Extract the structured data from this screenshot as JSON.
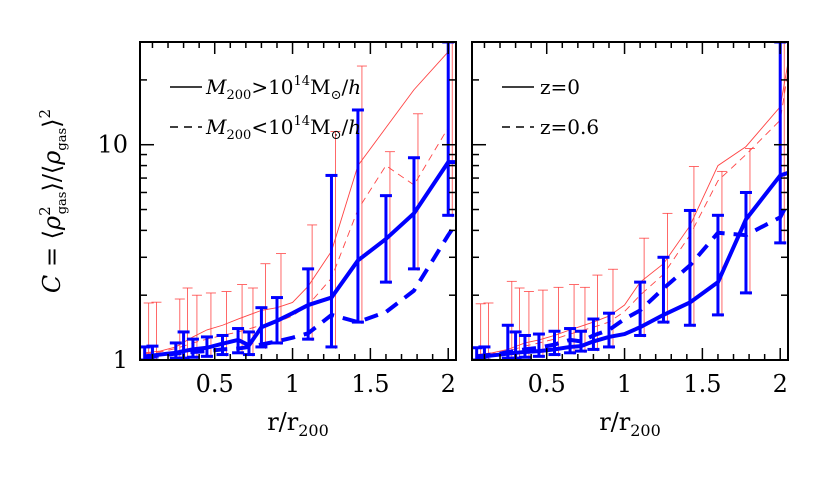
{
  "chart_data": [
    {
      "type": "line",
      "panel": "left",
      "xlabel": "r/r200",
      "ylabel": "C = <ρ²gas>/<ρgas>²",
      "xlim": [
        0.02,
        2.05
      ],
      "ylim": [
        1,
        30
      ],
      "yscale": "log",
      "xticks": [
        "0.5",
        "1",
        "1.5",
        "2"
      ],
      "yticks": [
        "1",
        "10"
      ],
      "legend_position": "top-left",
      "legend": [
        {
          "label": "M200>10^14 M⊙/h",
          "style": "solid"
        },
        {
          "label": "M200<10^14 M⊙/h",
          "style": "dashed"
        }
      ],
      "series": [
        {
          "name": "M200>10^14 M⊙/h",
          "style": "solid",
          "color": "#0000ff",
          "x": [
            0.05,
            0.1,
            0.15,
            0.2,
            0.25,
            0.3,
            0.36,
            0.45,
            0.55,
            0.65,
            0.72,
            0.8,
            0.9,
            1.0,
            1.1,
            1.25,
            1.42,
            1.6,
            1.78,
            2.0,
            2.05
          ],
          "y": [
            1.04,
            1.05,
            1.06,
            1.07,
            1.08,
            1.1,
            1.12,
            1.14,
            1.19,
            1.24,
            1.17,
            1.42,
            1.52,
            1.65,
            1.8,
            1.95,
            2.9,
            3.65,
            4.8,
            8.3,
            8.3
          ]
        },
        {
          "name": "M200<10^14 M⊙/h",
          "style": "dashed",
          "color": "#0000ff",
          "x": [
            0.05,
            0.1,
            0.15,
            0.2,
            0.25,
            0.3,
            0.36,
            0.45,
            0.55,
            0.65,
            0.72,
            0.8,
            0.9,
            1.0,
            1.1,
            1.25,
            1.42,
            1.6,
            1.78,
            2.0,
            2.05
          ],
          "y": [
            1.03,
            1.04,
            1.05,
            1.06,
            1.07,
            1.08,
            1.09,
            1.1,
            1.12,
            1.13,
            1.15,
            1.18,
            1.22,
            1.27,
            1.33,
            1.62,
            1.5,
            1.67,
            2.1,
            3.8,
            4.3
          ]
        },
        {
          "name": "",
          "style": "thin",
          "color": "#ff4444",
          "x": [
            0.05,
            0.15,
            0.25,
            0.36,
            0.45,
            0.55,
            0.65,
            0.8,
            0.9,
            1.0,
            1.1,
            1.25,
            1.42,
            1.6,
            1.78,
            2.0
          ],
          "y": [
            1.08,
            1.1,
            1.15,
            1.28,
            1.38,
            1.45,
            1.55,
            1.7,
            1.75,
            1.85,
            2.2,
            3.2,
            8.0,
            12.0,
            18.0,
            27.0
          ]
        },
        {
          "name": "",
          "style": "thin-dashed",
          "color": "#ff4444",
          "x": [
            0.05,
            0.15,
            0.25,
            0.36,
            0.45,
            0.55,
            0.65,
            0.8,
            0.9,
            1.0,
            1.1,
            1.25,
            1.42,
            1.6,
            1.78,
            2.0
          ],
          "y": [
            1.07,
            1.09,
            1.13,
            1.2,
            1.25,
            1.3,
            1.35,
            1.45,
            1.5,
            1.6,
            1.8,
            2.4,
            5.0,
            8.0,
            6.5,
            12.0
          ]
        }
      ],
      "error_bars": [
        {
          "x": 0.05,
          "lo": 1.0,
          "hi": 1.15
        },
        {
          "x": 0.1,
          "lo": 1.0,
          "hi": 1.16
        },
        {
          "x": 0.25,
          "lo": 1.02,
          "hi": 1.2
        },
        {
          "x": 0.3,
          "lo": 1.02,
          "hi": 1.35
        },
        {
          "x": 0.36,
          "lo": 1.03,
          "hi": 1.25
        },
        {
          "x": 0.45,
          "lo": 1.04,
          "hi": 1.28
        },
        {
          "x": 0.55,
          "lo": 1.06,
          "hi": 1.3
        },
        {
          "x": 0.65,
          "lo": 1.08,
          "hi": 1.4
        },
        {
          "x": 0.72,
          "lo": 1.06,
          "hi": 1.35
        },
        {
          "x": 0.8,
          "lo": 1.15,
          "hi": 1.75
        },
        {
          "x": 0.9,
          "lo": 1.2,
          "hi": 1.95
        },
        {
          "x": 1.1,
          "lo": 1.25,
          "hi": 2.65
        },
        {
          "x": 1.25,
          "lo": 1.15,
          "hi": 7.2
        },
        {
          "x": 1.42,
          "lo": 1.5,
          "hi": 14.5
        },
        {
          "x": 1.6,
          "lo": 2.3,
          "hi": 5.8
        },
        {
          "x": 1.78,
          "lo": 2.65,
          "hi": 8.7
        },
        {
          "x": 2.0,
          "lo": 4.7,
          "hi": 30.0
        }
      ]
    },
    {
      "type": "line",
      "panel": "right",
      "xlabel": "r/r200",
      "xlim": [
        0.02,
        2.05
      ],
      "ylim": [
        1,
        30
      ],
      "yscale": "log",
      "xticks": [
        "0.5",
        "1",
        "1.5",
        "2"
      ],
      "legend_position": "top-left",
      "legend": [
        {
          "label": "z=0",
          "style": "solid"
        },
        {
          "label": "z=0.6",
          "style": "dashed"
        }
      ],
      "series": [
        {
          "name": "z=0",
          "style": "solid",
          "color": "#0000ff",
          "x": [
            0.05,
            0.1,
            0.15,
            0.2,
            0.25,
            0.3,
            0.36,
            0.45,
            0.55,
            0.65,
            0.72,
            0.8,
            0.9,
            1.0,
            1.1,
            1.25,
            1.42,
            1.6,
            1.78,
            2.0,
            2.05
          ],
          "y": [
            1.03,
            1.04,
            1.05,
            1.06,
            1.07,
            1.08,
            1.09,
            1.1,
            1.12,
            1.15,
            1.16,
            1.22,
            1.28,
            1.32,
            1.42,
            1.62,
            1.85,
            2.3,
            4.5,
            7.2,
            7.4
          ]
        },
        {
          "name": "z=0.6",
          "style": "dashed",
          "color": "#0000ff",
          "x": [
            0.05,
            0.1,
            0.15,
            0.2,
            0.25,
            0.3,
            0.36,
            0.45,
            0.55,
            0.65,
            0.72,
            0.8,
            0.9,
            1.0,
            1.1,
            1.25,
            1.42,
            1.6,
            1.78,
            2.0,
            2.05
          ],
          "y": [
            1.04,
            1.05,
            1.06,
            1.07,
            1.09,
            1.1,
            1.12,
            1.14,
            1.18,
            1.24,
            1.22,
            1.3,
            1.38,
            1.55,
            1.7,
            2.15,
            2.75,
            3.9,
            3.8,
            4.6,
            5.4
          ]
        },
        {
          "name": "",
          "style": "thin",
          "color": "#ff4444",
          "x": [
            0.05,
            0.15,
            0.25,
            0.36,
            0.45,
            0.55,
            0.65,
            0.8,
            0.9,
            1.0,
            1.1,
            1.25,
            1.42,
            1.6,
            1.78,
            2.0,
            2.05
          ],
          "y": [
            1.06,
            1.08,
            1.12,
            1.2,
            1.24,
            1.3,
            1.38,
            1.5,
            1.6,
            1.8,
            2.3,
            2.8,
            4.2,
            8.0,
            9.8,
            15.0,
            24.0
          ]
        },
        {
          "name": "",
          "style": "thin-dashed",
          "color": "#ff4444",
          "x": [
            0.05,
            0.15,
            0.25,
            0.36,
            0.45,
            0.55,
            0.65,
            0.8,
            0.9,
            1.0,
            1.1,
            1.25,
            1.42,
            1.6,
            1.78,
            2.0,
            2.05
          ],
          "y": [
            1.05,
            1.07,
            1.1,
            1.16,
            1.2,
            1.25,
            1.32,
            1.42,
            1.5,
            1.68,
            2.0,
            2.5,
            3.8,
            6.8,
            9.0,
            13.0,
            22.0
          ]
        }
      ],
      "error_bars": [
        {
          "x": 0.05,
          "lo": 1.0,
          "hi": 1.14
        },
        {
          "x": 0.1,
          "lo": 1.0,
          "hi": 1.15
        },
        {
          "x": 0.25,
          "lo": 1.02,
          "hi": 1.45
        },
        {
          "x": 0.3,
          "lo": 1.02,
          "hi": 1.35
        },
        {
          "x": 0.36,
          "lo": 1.03,
          "hi": 1.3
        },
        {
          "x": 0.45,
          "lo": 1.04,
          "hi": 1.32
        },
        {
          "x": 0.55,
          "lo": 1.06,
          "hi": 1.36
        },
        {
          "x": 0.65,
          "lo": 1.08,
          "hi": 1.4
        },
        {
          "x": 0.72,
          "lo": 1.1,
          "hi": 1.36
        },
        {
          "x": 0.8,
          "lo": 1.12,
          "hi": 1.55
        },
        {
          "x": 0.9,
          "lo": 1.15,
          "hi": 1.65
        },
        {
          "x": 1.1,
          "lo": 1.3,
          "hi": 2.3
        },
        {
          "x": 1.25,
          "lo": 1.5,
          "hi": 3.0
        },
        {
          "x": 1.42,
          "lo": 1.45,
          "hi": 4.95
        },
        {
          "x": 1.6,
          "lo": 1.62,
          "hi": 4.7
        },
        {
          "x": 1.78,
          "lo": 2.05,
          "hi": 6.0
        },
        {
          "x": 2.0,
          "lo": 3.5,
          "hi": 30.0
        }
      ]
    }
  ],
  "colors": {
    "blue": "#0000ff",
    "red": "#ff4444",
    "axes": "#000000"
  }
}
